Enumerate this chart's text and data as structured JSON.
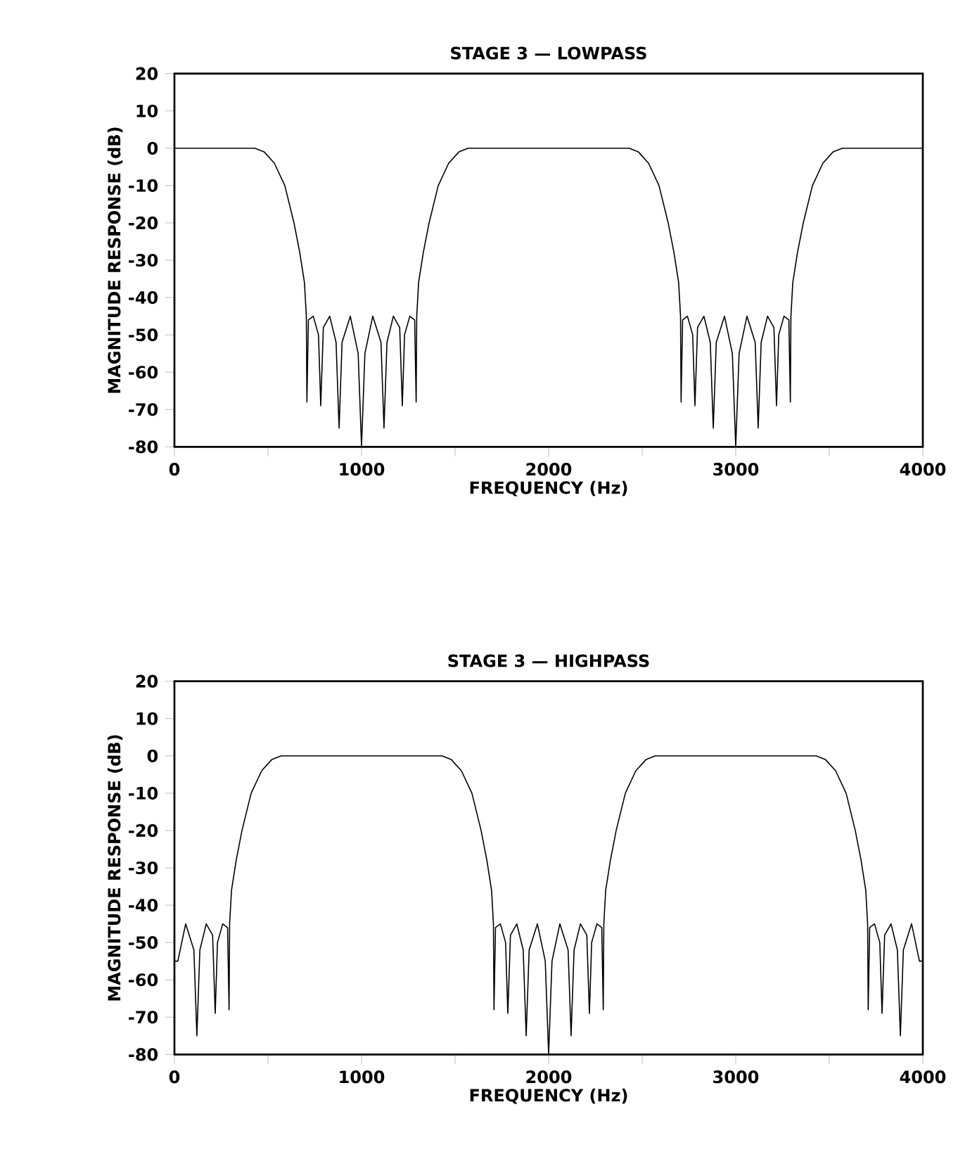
{
  "chart_data": [
    {
      "type": "line",
      "title": "STAGE 3 — LOWPASS",
      "xlabel": "FREQUENCY  (Hz)",
      "ylabel": "MAGNITUDE RESPONSE (dB)",
      "x": [
        0,
        430,
        480,
        534,
        590,
        639,
        670,
        695,
        705,
        708,
        716,
        742,
        770,
        782,
        796,
        830,
        864,
        880,
        896,
        940,
        982,
        1000,
        1018,
        1060,
        1104,
        1120,
        1136,
        1170,
        1204,
        1218,
        1230,
        1258,
        1284,
        1292,
        1295,
        1305,
        1330,
        1361,
        1410,
        1466,
        1520,
        1570,
        2430,
        2480,
        2534,
        2590,
        2639,
        2670,
        2695,
        2705,
        2708,
        2716,
        2742,
        2770,
        2782,
        2796,
        2830,
        2864,
        2880,
        2896,
        2940,
        2982,
        3000,
        3018,
        3060,
        3104,
        3120,
        3136,
        3170,
        3204,
        3218,
        3230,
        3258,
        3284,
        3292,
        3295,
        3305,
        3330,
        3361,
        3410,
        3466,
        3520,
        3570,
        4000
      ],
      "series": [
        {
          "color": "#000000",
          "values": [
            0,
            0,
            -1,
            -4,
            -10,
            -20,
            -28,
            -36,
            -45,
            -68,
            -46,
            -45,
            -50,
            -69,
            -48,
            -45,
            -52,
            -75,
            -52,
            -45,
            -55,
            -80,
            -55,
            -45,
            -52,
            -75,
            -52,
            -45,
            -48,
            -69,
            -50,
            -45,
            -46,
            -68,
            -45,
            -36,
            -28,
            -20,
            -10,
            -4,
            -1,
            0,
            0,
            -1,
            -4,
            -10,
            -20,
            -28,
            -36,
            -45,
            -68,
            -46,
            -45,
            -50,
            -69,
            -48,
            -45,
            -52,
            -75,
            -52,
            -45,
            -55,
            -80,
            -55,
            -45,
            -52,
            -75,
            -52,
            -45,
            -48,
            -69,
            -50,
            -45,
            -46,
            -68,
            -45,
            -36,
            -28,
            -20,
            -10,
            -4,
            -1,
            0,
            0
          ]
        }
      ],
      "xlim": [
        0,
        4000
      ],
      "ylim": [
        -80,
        20
      ],
      "xticks": [
        0,
        {
          "value": 500,
          "label": null
        },
        1000,
        {
          "value": 1500,
          "label": null
        },
        2000,
        {
          "value": 2500,
          "label": null
        },
        3000,
        {
          "value": 3500,
          "label": null
        },
        4000
      ],
      "yticks": [
        20,
        10,
        0,
        -10,
        -20,
        -30,
        -40,
        -50,
        -60,
        -70,
        -80
      ]
    },
    {
      "type": "line",
      "title": "STAGE 3 — HIGHPASS",
      "xlabel": "FREQUENCY  (Hz)",
      "ylabel": "MAGNITUDE RESPONSE (dB)",
      "x": [
        0,
        18,
        60,
        104,
        120,
        136,
        170,
        204,
        218,
        230,
        258,
        284,
        292,
        295,
        305,
        330,
        361,
        410,
        466,
        520,
        570,
        1430,
        1480,
        1534,
        1590,
        1639,
        1670,
        1695,
        1705,
        1708,
        1716,
        1742,
        1770,
        1782,
        1796,
        1830,
        1864,
        1880,
        1896,
        1940,
        1982,
        2000,
        2018,
        2060,
        2104,
        2120,
        2136,
        2170,
        2204,
        2218,
        2230,
        2258,
        2284,
        2292,
        2295,
        2305,
        2330,
        2361,
        2410,
        2466,
        2520,
        2570,
        3430,
        3480,
        3534,
        3590,
        3639,
        3670,
        3695,
        3705,
        3708,
        3716,
        3742,
        3770,
        3782,
        3796,
        3830,
        3864,
        3880,
        3896,
        3940,
        3982,
        4000
      ],
      "series": [
        {
          "color": "#000000",
          "values": [
            -55,
            -55,
            -45,
            -52,
            -75,
            -52,
            -45,
            -48,
            -69,
            -50,
            -45,
            -46,
            -68,
            -45,
            -36,
            -28,
            -20,
            -10,
            -4,
            -1,
            0,
            0,
            -1,
            -4,
            -10,
            -20,
            -28,
            -36,
            -45,
            -68,
            -46,
            -45,
            -50,
            -69,
            -48,
            -45,
            -52,
            -75,
            -52,
            -45,
            -55,
            -80,
            -55,
            -45,
            -52,
            -75,
            -52,
            -45,
            -48,
            -69,
            -50,
            -45,
            -46,
            -68,
            -45,
            -36,
            -28,
            -20,
            -10,
            -4,
            -1,
            0,
            0,
            -1,
            -4,
            -10,
            -20,
            -28,
            -36,
            -45,
            -68,
            -46,
            -45,
            -50,
            -69,
            -48,
            -45,
            -52,
            -75,
            -52,
            -45,
            -55,
            -55
          ]
        }
      ],
      "xlim": [
        0,
        4000
      ],
      "ylim": [
        -80,
        20
      ],
      "xticks": [
        0,
        {
          "value": 500,
          "label": null
        },
        1000,
        {
          "value": 1500,
          "label": null
        },
        2000,
        {
          "value": 2500,
          "label": null
        },
        3000,
        {
          "value": 3500,
          "label": null
        },
        4000
      ],
      "yticks": [
        20,
        10,
        0,
        -10,
        -20,
        -30,
        -40,
        -50,
        -60,
        -70,
        -80
      ]
    }
  ]
}
